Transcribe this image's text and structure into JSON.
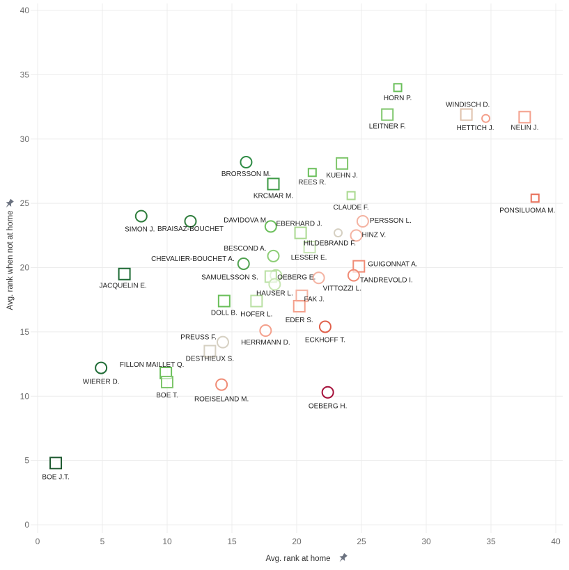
{
  "chart_data": {
    "type": "scatter",
    "title": "",
    "xlabel": "Avg. rank at home",
    "ylabel": "Avg. rank when not at home",
    "xlim": [
      0,
      40
    ],
    "ylim": [
      0,
      40
    ],
    "x_ticks": [
      0,
      5,
      10,
      15,
      20,
      25,
      30,
      35,
      40
    ],
    "y_ticks": [
      0,
      5,
      10,
      15,
      20,
      25,
      30,
      35,
      40
    ],
    "grid": true,
    "axis_pin_icon": "pin-icon",
    "points": [
      {
        "name": "HORN P.",
        "x": 27.8,
        "y": 34.0,
        "shape": "square",
        "size": "s",
        "color": "#6abf5a"
      },
      {
        "name": "WINDISCH D.",
        "x": 33.1,
        "y": 31.9,
        "shape": "square",
        "size": "m",
        "color": "#dfc2ad"
      },
      {
        "name": "HETTICH J.",
        "x": 34.6,
        "y": 31.6,
        "shape": "circle",
        "size": "s",
        "color": "#f4a08c"
      },
      {
        "name": "NELIN J.",
        "x": 37.6,
        "y": 31.7,
        "shape": "square",
        "size": "m",
        "color": "#f4a08c"
      },
      {
        "name": "LEITNER F.",
        "x": 27.0,
        "y": 31.9,
        "shape": "square",
        "size": "m",
        "color": "#7fc66c"
      },
      {
        "name": "BRORSSON M.",
        "x": 16.1,
        "y": 28.2,
        "shape": "circle",
        "size": "m",
        "color": "#2e8b45"
      },
      {
        "name": "KUEHN J.",
        "x": 23.5,
        "y": 28.1,
        "shape": "square",
        "size": "m",
        "color": "#7fc66c"
      },
      {
        "name": "REES R.",
        "x": 21.2,
        "y": 27.4,
        "shape": "square",
        "size": "s",
        "color": "#6abf5a"
      },
      {
        "name": "KRCMAR M.",
        "x": 18.2,
        "y": 26.5,
        "shape": "square",
        "size": "m",
        "color": "#3d9a45"
      },
      {
        "name": "CLAUDE F.",
        "x": 24.2,
        "y": 25.6,
        "shape": "square",
        "size": "s",
        "color": "#a9d98f"
      },
      {
        "name": "PONSILUOMA M.",
        "x": 38.4,
        "y": 25.4,
        "shape": "square",
        "size": "s",
        "color": "#e8705a"
      },
      {
        "name": "SIMON J.",
        "x": 8.0,
        "y": 24.0,
        "shape": "circle",
        "size": "m",
        "color": "#2e7d3c"
      },
      {
        "name": "BRAISAZ-BOUCHET",
        "x": 11.8,
        "y": 23.6,
        "shape": "circle",
        "size": "m",
        "color": "#2e7d3c"
      },
      {
        "name": "DAVIDOVA M.",
        "x": 18.0,
        "y": 23.2,
        "shape": "circle",
        "size": "m",
        "color": "#6abf5a"
      },
      {
        "name": "PERSSON L.",
        "x": 25.1,
        "y": 23.6,
        "shape": "circle",
        "size": "m",
        "color": "#f4b3a2"
      },
      {
        "name": "EBERHARD J.",
        "x": 20.3,
        "y": 22.7,
        "shape": "square",
        "size": "m",
        "color": "#a9d98f"
      },
      {
        "name": "HILDEBRAND F.",
        "x": 23.2,
        "y": 22.7,
        "shape": "circle",
        "size": "s",
        "color": "#d6d0c2"
      },
      {
        "name": "HINZ V.",
        "x": 24.6,
        "y": 22.5,
        "shape": "circle",
        "size": "m",
        "color": "#f4b3a2"
      },
      {
        "name": "LESSER E.",
        "x": 21.0,
        "y": 21.6,
        "shape": "square",
        "size": "m",
        "color": "#c8e6b4"
      },
      {
        "name": "BESCOND A.",
        "x": 18.2,
        "y": 20.9,
        "shape": "circle",
        "size": "m",
        "color": "#8ccd75"
      },
      {
        "name": "CHEVALIER-BOUCHET A.",
        "x": 15.9,
        "y": 20.3,
        "shape": "circle",
        "size": "m",
        "color": "#4fa24f"
      },
      {
        "name": "GUIGONNAT A.",
        "x": 24.8,
        "y": 20.1,
        "shape": "square",
        "size": "m",
        "color": "#f08c76"
      },
      {
        "name": "JACQUELIN E.",
        "x": 6.7,
        "y": 19.5,
        "shape": "square",
        "size": "m",
        "color": "#1e6b35"
      },
      {
        "name": "OEBERG E.",
        "x": 18.4,
        "y": 19.4,
        "shape": "circle",
        "size": "m",
        "color": "#b9e0a3"
      },
      {
        "name": "SAMUELSSON S.",
        "x": 18.0,
        "y": 19.3,
        "shape": "square",
        "size": "m",
        "color": "#b9e0a3"
      },
      {
        "name": "TANDREVOLD I.",
        "x": 24.4,
        "y": 19.4,
        "shape": "circle",
        "size": "m",
        "color": "#f08c76"
      },
      {
        "name": "VITTOZZI L.",
        "x": 21.7,
        "y": 19.2,
        "shape": "circle",
        "size": "m",
        "color": "#f4b3a2"
      },
      {
        "name": "HAUSER L.",
        "x": 18.3,
        "y": 18.7,
        "shape": "circle",
        "size": "m",
        "color": "#c8e6b4"
      },
      {
        "name": "FAK J.",
        "x": 20.4,
        "y": 17.8,
        "shape": "square",
        "size": "m",
        "color": "#f4b3a2"
      },
      {
        "name": "DOLL B.",
        "x": 14.4,
        "y": 17.4,
        "shape": "square",
        "size": "m",
        "color": "#6abf5a"
      },
      {
        "name": "HOFER L.",
        "x": 16.9,
        "y": 17.4,
        "shape": "square",
        "size": "m",
        "color": "#b9e0a3"
      },
      {
        "name": "EDER S.",
        "x": 20.2,
        "y": 17.0,
        "shape": "square",
        "size": "m",
        "color": "#f4a08c"
      },
      {
        "name": "ECKHOFF T.",
        "x": 22.2,
        "y": 15.4,
        "shape": "circle",
        "size": "m",
        "color": "#e0604a"
      },
      {
        "name": "HERRMANN D.",
        "x": 17.6,
        "y": 15.1,
        "shape": "circle",
        "size": "m",
        "color": "#f4a08c"
      },
      {
        "name": "PREUSS F.",
        "x": 14.3,
        "y": 14.2,
        "shape": "circle",
        "size": "m",
        "color": "#d6d0c2"
      },
      {
        "name": "DESTHIEUX S.",
        "x": 13.3,
        "y": 13.5,
        "shape": "square",
        "size": "m",
        "color": "#d6d0c2"
      },
      {
        "name": "WIERER D.",
        "x": 4.9,
        "y": 12.2,
        "shape": "circle",
        "size": "m",
        "color": "#1e6b35"
      },
      {
        "name": "FILLON MAILLET Q.",
        "x": 9.9,
        "y": 11.8,
        "shape": "square",
        "size": "m",
        "color": "#6abf5a"
      },
      {
        "name": "BOE T.",
        "x": 10.0,
        "y": 11.1,
        "shape": "square",
        "size": "m",
        "color": "#7fc66c"
      },
      {
        "name": "ROEISELAND M.",
        "x": 14.2,
        "y": 10.9,
        "shape": "circle",
        "size": "m",
        "color": "#f08c76"
      },
      {
        "name": "OEBERG H.",
        "x": 22.4,
        "y": 10.3,
        "shape": "circle",
        "size": "m",
        "color": "#a5103a"
      },
      {
        "name": "BOE J.T.",
        "x": 1.4,
        "y": 4.8,
        "shape": "square",
        "size": "m",
        "color": "#1e5a30"
      }
    ]
  }
}
